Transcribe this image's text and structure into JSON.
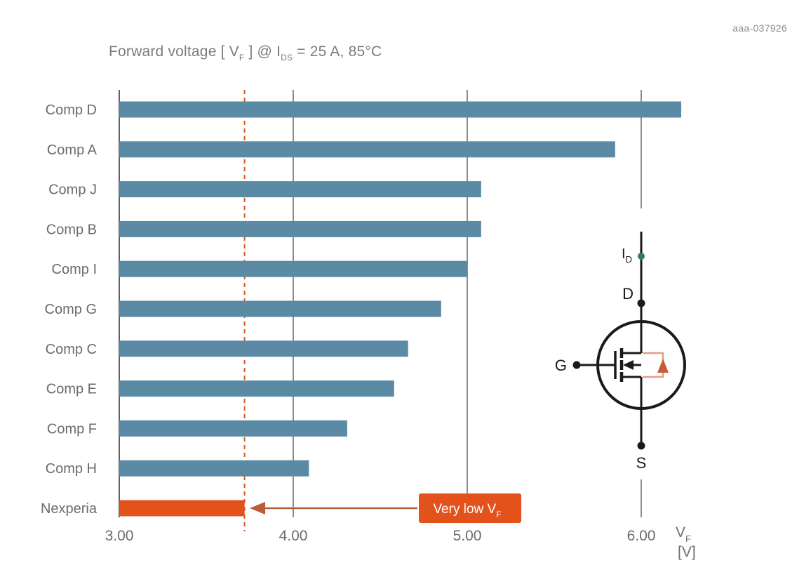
{
  "doc_id": "aaa-037926",
  "title": {
    "pre": "Forward voltage [ V",
    "sub1": "F",
    "mid": " ] @ I",
    "sub2": "DS",
    "post": " = 25 A, 85°C"
  },
  "chart_data": {
    "type": "bar",
    "orientation": "horizontal",
    "title": "Forward voltage [VF] @ IDS = 25 A, 85degC",
    "xlabel": "VF [V]",
    "categories": [
      "Comp D",
      "Comp A",
      "Comp J",
      "Comp B",
      "Comp I",
      "Comp G",
      "Comp C",
      "Comp E",
      "Comp F",
      "Comp H",
      "Nexperia"
    ],
    "values": [
      6.23,
      5.85,
      5.08,
      5.08,
      5.0,
      4.85,
      4.66,
      4.58,
      4.31,
      4.09,
      3.72
    ],
    "xlim": [
      3.0,
      6.5
    ],
    "x_ticks": [
      3,
      4,
      5,
      6
    ],
    "x_tick_labels": [
      "3.00",
      "4.00",
      "5.00",
      "6.00"
    ],
    "grid": "vertical-lines-at-ticks",
    "highlight_category": "Nexperia",
    "reference_line_x": 3.72,
    "annotation": {
      "text": "Very low V",
      "sub": "F",
      "points_to_value": 3.72
    },
    "colors": {
      "bar": "#5b8ba4",
      "highlight": "#e4521b",
      "grid": "#6e6e6e",
      "dashed_line": "#d9571f",
      "arrow": "#b85c3a",
      "label_text": "#6b6b6b",
      "annotation_text": "#ffffff"
    }
  },
  "axis_label": {
    "base": "V",
    "sub": "F",
    "unit": "[V]"
  },
  "circuit": {
    "current_label": {
      "base": "I",
      "sub": "D"
    },
    "terminals": {
      "drain": "D",
      "gate": "G",
      "source": "S"
    },
    "colors": {
      "wire": "#1a1a1a",
      "body_diode": "#dda183",
      "diode_fill": "#c65d35",
      "node_dot": "#32796a"
    }
  }
}
